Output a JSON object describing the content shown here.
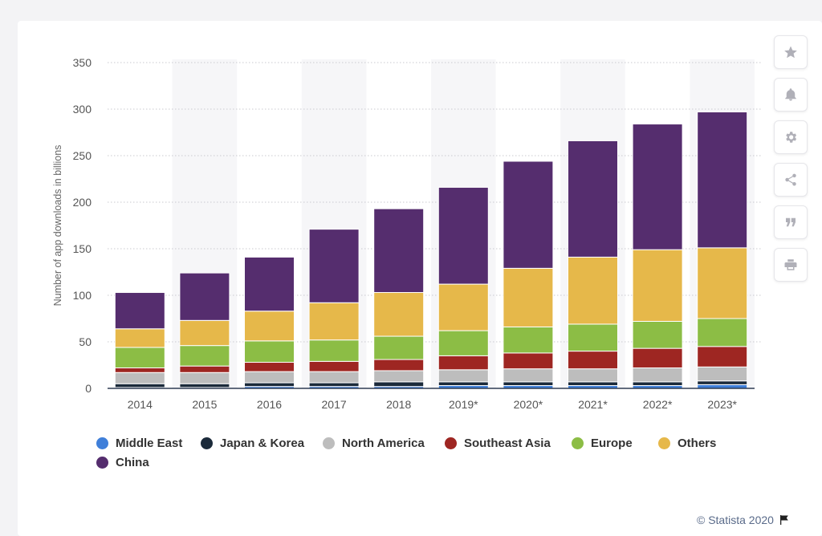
{
  "chart_data": {
    "type": "bar",
    "stacked": true,
    "ylabel": "Number of app downloads in billions",
    "ylim": [
      0,
      350
    ],
    "yticks": [
      0,
      50,
      100,
      150,
      200,
      250,
      300,
      350
    ],
    "categories": [
      "2014",
      "2015",
      "2016",
      "2017",
      "2018",
      "2019*",
      "2020*",
      "2021*",
      "2022*",
      "2023*"
    ],
    "series": [
      {
        "name": "Middle East",
        "color": "#3f7fd9",
        "values": [
          1,
          1,
          2,
          2,
          2,
          3,
          3,
          3,
          3,
          4
        ]
      },
      {
        "name": "Japan & Korea",
        "color": "#1b2a3a",
        "values": [
          4,
          4,
          4,
          4,
          5,
          4,
          4,
          4,
          4,
          4
        ]
      },
      {
        "name": "North America",
        "color": "#bdbdbd",
        "values": [
          12,
          12,
          12,
          12,
          12,
          13,
          14,
          14,
          15,
          15
        ]
      },
      {
        "name": "Southeast Asia",
        "color": "#9e2622",
        "values": [
          5,
          7,
          10,
          11,
          12,
          15,
          17,
          19,
          21,
          22
        ]
      },
      {
        "name": "Europe",
        "color": "#8cbd45",
        "values": [
          22,
          22,
          23,
          23,
          25,
          27,
          28,
          29,
          29,
          30
        ]
      },
      {
        "name": "Others",
        "color": "#e6b84a",
        "values": [
          20,
          27,
          32,
          40,
          47,
          50,
          63,
          72,
          77,
          76
        ]
      },
      {
        "name": "China",
        "color": "#552d6e",
        "values": [
          39,
          51,
          58,
          79,
          90,
          104,
          115,
          125,
          135,
          146
        ]
      }
    ],
    "grid": true,
    "legend_position": "bottom"
  },
  "legend": [
    {
      "name": "Middle East",
      "color": "#3f7fd9"
    },
    {
      "name": "Japan & Korea",
      "color": "#1b2a3a"
    },
    {
      "name": "North America",
      "color": "#bdbdbd"
    },
    {
      "name": "Southeast Asia",
      "color": "#9e2622"
    },
    {
      "name": "Europe",
      "color": "#8cbd45"
    },
    {
      "name": "Others",
      "color": "#e6b84a"
    },
    {
      "name": "China",
      "color": "#552d6e"
    }
  ],
  "toolbar": [
    {
      "name": "favorite-button",
      "icon": "star-icon"
    },
    {
      "name": "notification-button",
      "icon": "bell-icon"
    },
    {
      "name": "settings-button",
      "icon": "gear-icon"
    },
    {
      "name": "share-button",
      "icon": "share-icon"
    },
    {
      "name": "cite-button",
      "icon": "quote-icon"
    },
    {
      "name": "print-button",
      "icon": "printer-icon"
    }
  ],
  "credit": {
    "text": "© Statista 2020",
    "icon": "flag-icon"
  }
}
